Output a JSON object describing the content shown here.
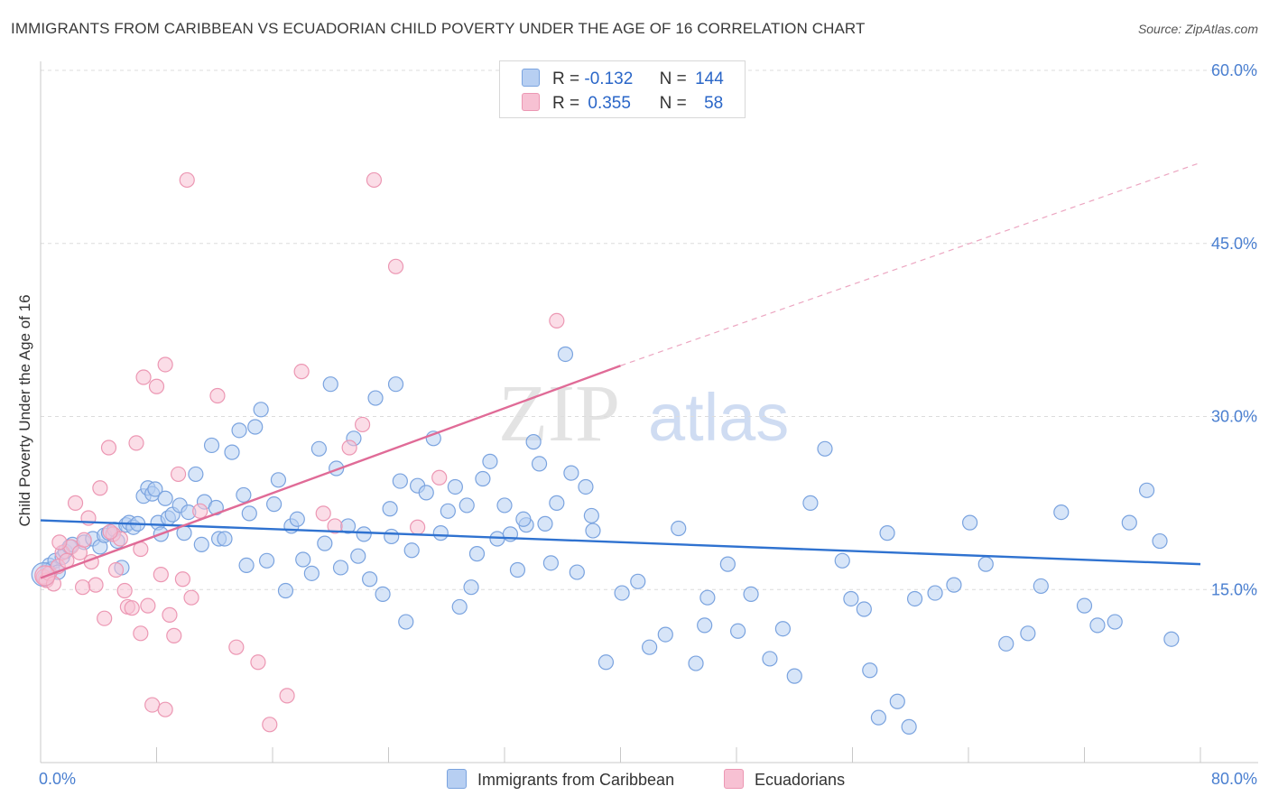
{
  "title": "IMMIGRANTS FROM CARIBBEAN VS ECUADORIAN CHILD POVERTY UNDER THE AGE OF 16 CORRELATION CHART",
  "source": "Source: ZipAtlas.com",
  "watermark": {
    "zip": "ZIP",
    "atlas": "atlas"
  },
  "colors": {
    "blue_fill": "#b7cff2",
    "blue_stroke": "#7aa3df",
    "blue_line": "#2f72d0",
    "pink_fill": "#f7c1d3",
    "pink_stroke": "#ec97b3",
    "pink_line": "#e06b97",
    "grid": "#dcdcdc",
    "tick_text": "#4a7fd0"
  },
  "legend": {
    "rows": [
      {
        "r_label": "R =",
        "r_value": "-0.132",
        "n_label": "N =",
        "n_value": "144"
      },
      {
        "r_label": "R =",
        "r_value": "0.355",
        "n_label": "N =",
        "n_value": "58"
      }
    ]
  },
  "bottom_legend": [
    "Immigrants from Caribbean",
    "Ecuadorians"
  ],
  "chart_data": {
    "type": "scatter",
    "ylabel": "Child Poverty Under the Age of 16",
    "xlabel": "",
    "xlim": [
      0,
      80
    ],
    "ylim": [
      0,
      60
    ],
    "x_tick_labels": [
      {
        "value": 0,
        "label": "0.0%"
      },
      {
        "value": 80,
        "label": "80.0%"
      }
    ],
    "y_tick_labels": [
      {
        "value": 15,
        "label": "15.0%"
      },
      {
        "value": 30,
        "label": "30.0%"
      },
      {
        "value": 45,
        "label": "45.0%"
      },
      {
        "value": 60,
        "label": "60.0%"
      }
    ],
    "grid": "horizontal dashed",
    "series": [
      {
        "name": "Immigrants from Caribbean",
        "color": "#7aa3df",
        "points": [
          [
            0.3,
            16.0
          ],
          [
            0.5,
            16.7
          ],
          [
            0.6,
            17.1
          ],
          [
            0.8,
            16.8
          ],
          [
            1.0,
            17.5
          ],
          [
            1.2,
            16.5
          ],
          [
            1.5,
            17.8
          ],
          [
            1.7,
            18.3
          ],
          [
            2.0,
            18.7
          ],
          [
            2.2,
            18.9
          ],
          [
            3.0,
            19.1
          ],
          [
            3.6,
            19.4
          ],
          [
            4.1,
            18.7
          ],
          [
            4.4,
            19.7
          ],
          [
            4.7,
            19.9
          ],
          [
            5.1,
            20.2
          ],
          [
            5.3,
            19.2
          ],
          [
            5.6,
            16.9
          ],
          [
            5.9,
            20.6
          ],
          [
            6.1,
            20.8
          ],
          [
            6.4,
            20.4
          ],
          [
            6.7,
            20.7
          ],
          [
            7.1,
            23.1
          ],
          [
            7.4,
            23.8
          ],
          [
            7.7,
            23.3
          ],
          [
            7.9,
            23.7
          ],
          [
            8.1,
            20.8
          ],
          [
            8.3,
            19.8
          ],
          [
            8.6,
            22.9
          ],
          [
            8.8,
            21.2
          ],
          [
            9.1,
            21.5
          ],
          [
            9.6,
            22.3
          ],
          [
            9.9,
            19.9
          ],
          [
            10.2,
            21.7
          ],
          [
            10.7,
            25.0
          ],
          [
            11.1,
            18.9
          ],
          [
            11.3,
            22.6
          ],
          [
            11.8,
            27.5
          ],
          [
            12.1,
            22.1
          ],
          [
            12.3,
            19.4
          ],
          [
            12.7,
            19.4
          ],
          [
            13.2,
            26.9
          ],
          [
            13.7,
            28.8
          ],
          [
            14.0,
            23.2
          ],
          [
            14.2,
            17.1
          ],
          [
            14.4,
            21.6
          ],
          [
            14.8,
            29.1
          ],
          [
            15.2,
            30.6
          ],
          [
            15.6,
            17.5
          ],
          [
            16.1,
            22.4
          ],
          [
            16.4,
            24.5
          ],
          [
            16.9,
            14.9
          ],
          [
            17.3,
            20.5
          ],
          [
            17.7,
            21.1
          ],
          [
            18.1,
            17.6
          ],
          [
            18.7,
            16.4
          ],
          [
            19.2,
            27.2
          ],
          [
            19.6,
            19.0
          ],
          [
            20.0,
            32.8
          ],
          [
            20.4,
            25.5
          ],
          [
            20.7,
            16.9
          ],
          [
            21.2,
            20.5
          ],
          [
            21.6,
            28.1
          ],
          [
            21.9,
            17.9
          ],
          [
            22.3,
            19.8
          ],
          [
            22.7,
            15.9
          ],
          [
            23.1,
            31.6
          ],
          [
            23.6,
            14.6
          ],
          [
            24.1,
            22.0
          ],
          [
            24.5,
            32.8
          ],
          [
            24.8,
            24.4
          ],
          [
            25.2,
            12.2
          ],
          [
            25.6,
            18.4
          ],
          [
            26.0,
            24.0
          ],
          [
            26.6,
            23.4
          ],
          [
            27.1,
            28.1
          ],
          [
            27.6,
            19.9
          ],
          [
            28.1,
            21.8
          ],
          [
            28.6,
            23.9
          ],
          [
            28.9,
            13.5
          ],
          [
            29.4,
            22.3
          ],
          [
            29.7,
            15.2
          ],
          [
            30.1,
            18.1
          ],
          [
            30.5,
            24.6
          ],
          [
            31.0,
            26.1
          ],
          [
            31.5,
            19.4
          ],
          [
            32.0,
            22.3
          ],
          [
            32.4,
            19.8
          ],
          [
            32.9,
            16.7
          ],
          [
            33.5,
            20.6
          ],
          [
            34.0,
            27.8
          ],
          [
            34.4,
            25.9
          ],
          [
            34.8,
            20.7
          ],
          [
            35.2,
            17.3
          ],
          [
            35.6,
            22.5
          ],
          [
            36.2,
            35.4
          ],
          [
            36.6,
            25.1
          ],
          [
            37.0,
            16.5
          ],
          [
            37.6,
            23.9
          ],
          [
            38.1,
            20.1
          ],
          [
            39.0,
            8.7
          ],
          [
            40.1,
            14.7
          ],
          [
            41.2,
            15.7
          ],
          [
            42.0,
            10.0
          ],
          [
            43.1,
            11.1
          ],
          [
            44.0,
            20.3
          ],
          [
            45.2,
            8.6
          ],
          [
            46.0,
            14.3
          ],
          [
            47.4,
            17.2
          ],
          [
            48.1,
            11.4
          ],
          [
            49.0,
            14.6
          ],
          [
            50.3,
            9.0
          ],
          [
            51.2,
            11.6
          ],
          [
            52.0,
            7.5
          ],
          [
            53.1,
            22.5
          ],
          [
            54.1,
            27.2
          ],
          [
            55.3,
            17.5
          ],
          [
            55.9,
            14.2
          ],
          [
            56.8,
            13.3
          ],
          [
            57.2,
            8.0
          ],
          [
            57.8,
            3.9
          ],
          [
            58.4,
            19.9
          ],
          [
            59.1,
            5.3
          ],
          [
            59.9,
            3.1
          ],
          [
            60.3,
            14.2
          ],
          [
            61.7,
            14.7
          ],
          [
            63.0,
            15.4
          ],
          [
            64.1,
            20.8
          ],
          [
            65.2,
            17.2
          ],
          [
            66.6,
            10.3
          ],
          [
            68.1,
            11.2
          ],
          [
            69.0,
            15.3
          ],
          [
            70.4,
            21.7
          ],
          [
            72.0,
            13.6
          ],
          [
            72.9,
            11.9
          ],
          [
            74.1,
            12.2
          ],
          [
            75.1,
            20.8
          ],
          [
            76.3,
            23.6
          ],
          [
            77.2,
            19.2
          ],
          [
            78.0,
            10.7
          ],
          [
            38.0,
            21.4
          ],
          [
            45.8,
            11.9
          ],
          [
            24.2,
            19.6
          ],
          [
            33.3,
            21.1
          ]
        ]
      },
      {
        "name": "Ecuadorians",
        "color": "#ec97b3",
        "points": [
          [
            0.2,
            16.1
          ],
          [
            0.4,
            15.8
          ],
          [
            0.6,
            16.4
          ],
          [
            0.9,
            15.5
          ],
          [
            1.2,
            17.0
          ],
          [
            1.5,
            18.2
          ],
          [
            1.8,
            17.5
          ],
          [
            2.1,
            18.7
          ],
          [
            2.4,
            22.5
          ],
          [
            2.7,
            18.2
          ],
          [
            3.0,
            19.3
          ],
          [
            3.3,
            21.2
          ],
          [
            3.5,
            17.4
          ],
          [
            3.8,
            15.4
          ],
          [
            4.1,
            23.8
          ],
          [
            4.4,
            12.5
          ],
          [
            4.7,
            27.3
          ],
          [
            5.0,
            19.8
          ],
          [
            5.2,
            16.7
          ],
          [
            5.5,
            19.4
          ],
          [
            5.8,
            14.9
          ],
          [
            6.0,
            13.5
          ],
          [
            6.3,
            13.4
          ],
          [
            6.6,
            27.7
          ],
          [
            6.9,
            11.2
          ],
          [
            7.1,
            33.4
          ],
          [
            7.4,
            13.6
          ],
          [
            7.7,
            5.0
          ],
          [
            8.0,
            32.6
          ],
          [
            8.3,
            16.3
          ],
          [
            8.6,
            34.5
          ],
          [
            8.9,
            12.8
          ],
          [
            9.2,
            11.0
          ],
          [
            9.5,
            25.0
          ],
          [
            9.8,
            15.9
          ],
          [
            10.1,
            50.5
          ],
          [
            10.4,
            14.3
          ],
          [
            11.0,
            21.8
          ],
          [
            12.2,
            31.8
          ],
          [
            13.5,
            10.0
          ],
          [
            15.0,
            8.7
          ],
          [
            17.0,
            5.8
          ],
          [
            19.5,
            21.6
          ],
          [
            20.3,
            20.5
          ],
          [
            21.3,
            27.3
          ],
          [
            22.2,
            29.3
          ],
          [
            23.0,
            50.5
          ],
          [
            24.5,
            43.0
          ],
          [
            26.0,
            20.4
          ],
          [
            27.5,
            24.7
          ],
          [
            35.6,
            38.3
          ],
          [
            18.0,
            33.9
          ],
          [
            4.8,
            20.0
          ],
          [
            2.9,
            15.2
          ],
          [
            1.3,
            19.1
          ],
          [
            6.9,
            18.5
          ],
          [
            8.6,
            4.6
          ],
          [
            15.8,
            3.3
          ]
        ]
      }
    ],
    "trend_lines": [
      {
        "series": "Immigrants from Caribbean",
        "x": [
          0,
          80
        ],
        "y": [
          21.0,
          17.2
        ],
        "style": "solid"
      },
      {
        "series": "Ecuadorians",
        "x": [
          0,
          40
        ],
        "y": [
          16.0,
          34.4
        ],
        "style": "solid"
      },
      {
        "series": "Ecuadorians",
        "x": [
          40,
          80
        ],
        "y": [
          34.4,
          52.0
        ],
        "style": "dashed"
      }
    ]
  }
}
